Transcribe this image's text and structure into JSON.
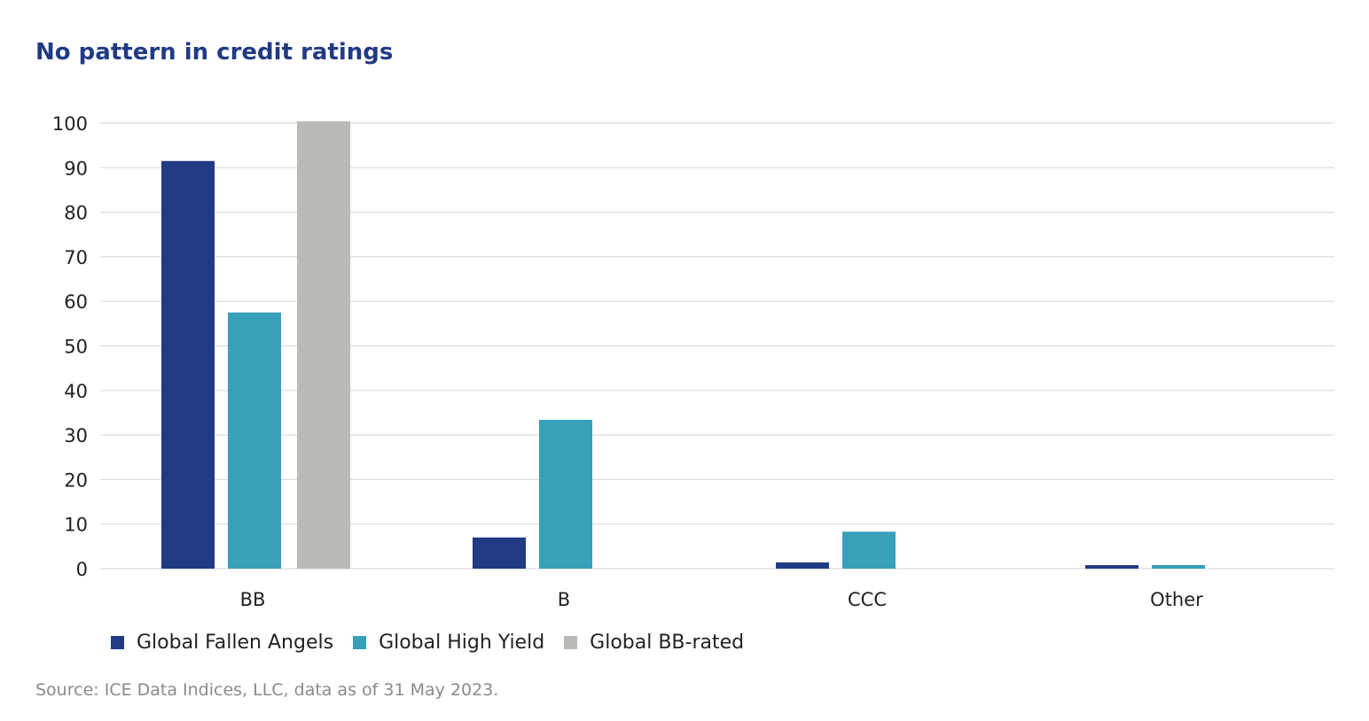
{
  "chart_data": {
    "type": "bar",
    "title": "No pattern in credit ratings",
    "categories": [
      "BB",
      "B",
      "CCC",
      "Other"
    ],
    "series": [
      {
        "name": "Global Fallen Angels",
        "color": "#213b82",
        "values": [
          91.5,
          7,
          1.4,
          0.8
        ]
      },
      {
        "name": "Global High Yield",
        "color": "#38a0b8",
        "values": [
          57.5,
          33.4,
          8.3,
          0.8
        ]
      },
      {
        "name": "Global BB-rated",
        "color": "#bbbab6",
        "values": [
          100.4,
          0,
          0,
          0
        ]
      }
    ],
    "ylim": [
      0,
      100
    ],
    "yticks": [
      0,
      10,
      20,
      30,
      40,
      50,
      60,
      70,
      80,
      90,
      100
    ],
    "xlabel": "",
    "ylabel": "",
    "grid": true,
    "legend": "bottom-left"
  },
  "source": "Source: ICE Data Indices, LLC, data as of 31 May 2023."
}
